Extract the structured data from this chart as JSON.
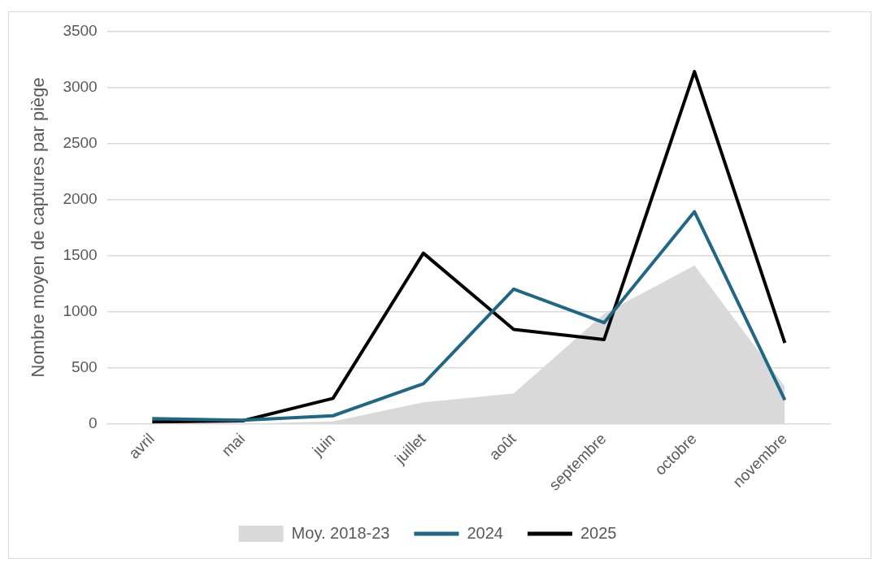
{
  "chart_data": {
    "type": "line",
    "ylabel": "Nombre moyen de captures par piège",
    "categories": [
      "avril",
      "mai",
      "juin",
      "juillet",
      "août",
      "septembre",
      "octobre",
      "novembre"
    ],
    "series": [
      {
        "name": "Moy. 2018-23",
        "type": "area",
        "color": "#d9d9d9",
        "values": [
          0,
          0,
          20,
          190,
          270,
          980,
          1410,
          330
        ]
      },
      {
        "name": "2024",
        "color": "#1f6784",
        "values": [
          45,
          30,
          70,
          355,
          1200,
          900,
          1890,
          210
        ]
      },
      {
        "name": "2025",
        "color": "#000000",
        "values": [
          15,
          25,
          225,
          1520,
          840,
          750,
          3140,
          720
        ]
      }
    ],
    "ylim": [
      0,
      3500
    ],
    "yticks": [
      0,
      500,
      1000,
      1500,
      2000,
      2500,
      3000,
      3500
    ],
    "grid": "y",
    "legend": "bottom",
    "marker": "none",
    "line_style": "solid"
  }
}
